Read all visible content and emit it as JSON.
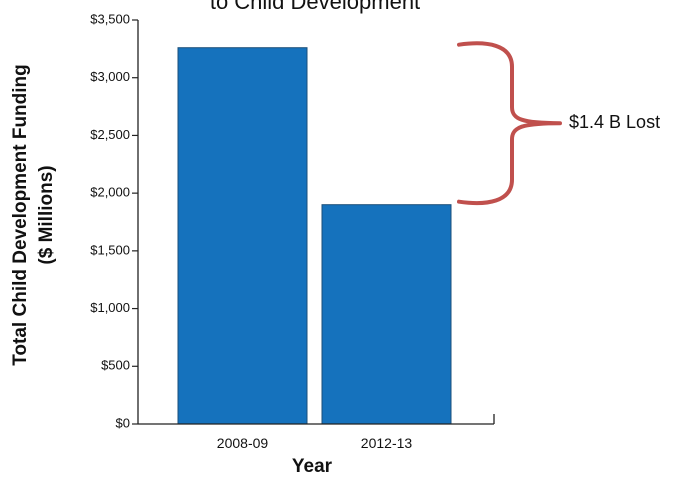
{
  "chart_data": {
    "type": "bar",
    "title": "to Child Development",
    "xlabel": "Year",
    "ylabel_lines": [
      "Total Child Development Funding",
      "($ Millions)"
    ],
    "categories": [
      "2008-09",
      "2012-13"
    ],
    "values": [
      3260,
      1900
    ],
    "ylim": [
      0,
      3500
    ],
    "yticks": [
      {
        "value": 0,
        "label": "$0"
      },
      {
        "value": 500,
        "label": "$500"
      },
      {
        "value": 1000,
        "label": "$1,000"
      },
      {
        "value": 1500,
        "label": "$1,500"
      },
      {
        "value": 2000,
        "label": "$2,000"
      },
      {
        "value": 2500,
        "label": "$2,500"
      },
      {
        "value": 3000,
        "label": "$3,000"
      },
      {
        "value": 3500,
        "label": "$3,500"
      }
    ],
    "grid": false,
    "annotation": {
      "text": "$1.4 B Lost",
      "from_value": 3260,
      "to_value": 1900
    },
    "colors": {
      "bar": "#1572bd",
      "bar_edge": "#1a4f7a",
      "bracket": "#c0504d",
      "axis": "#222222"
    }
  }
}
